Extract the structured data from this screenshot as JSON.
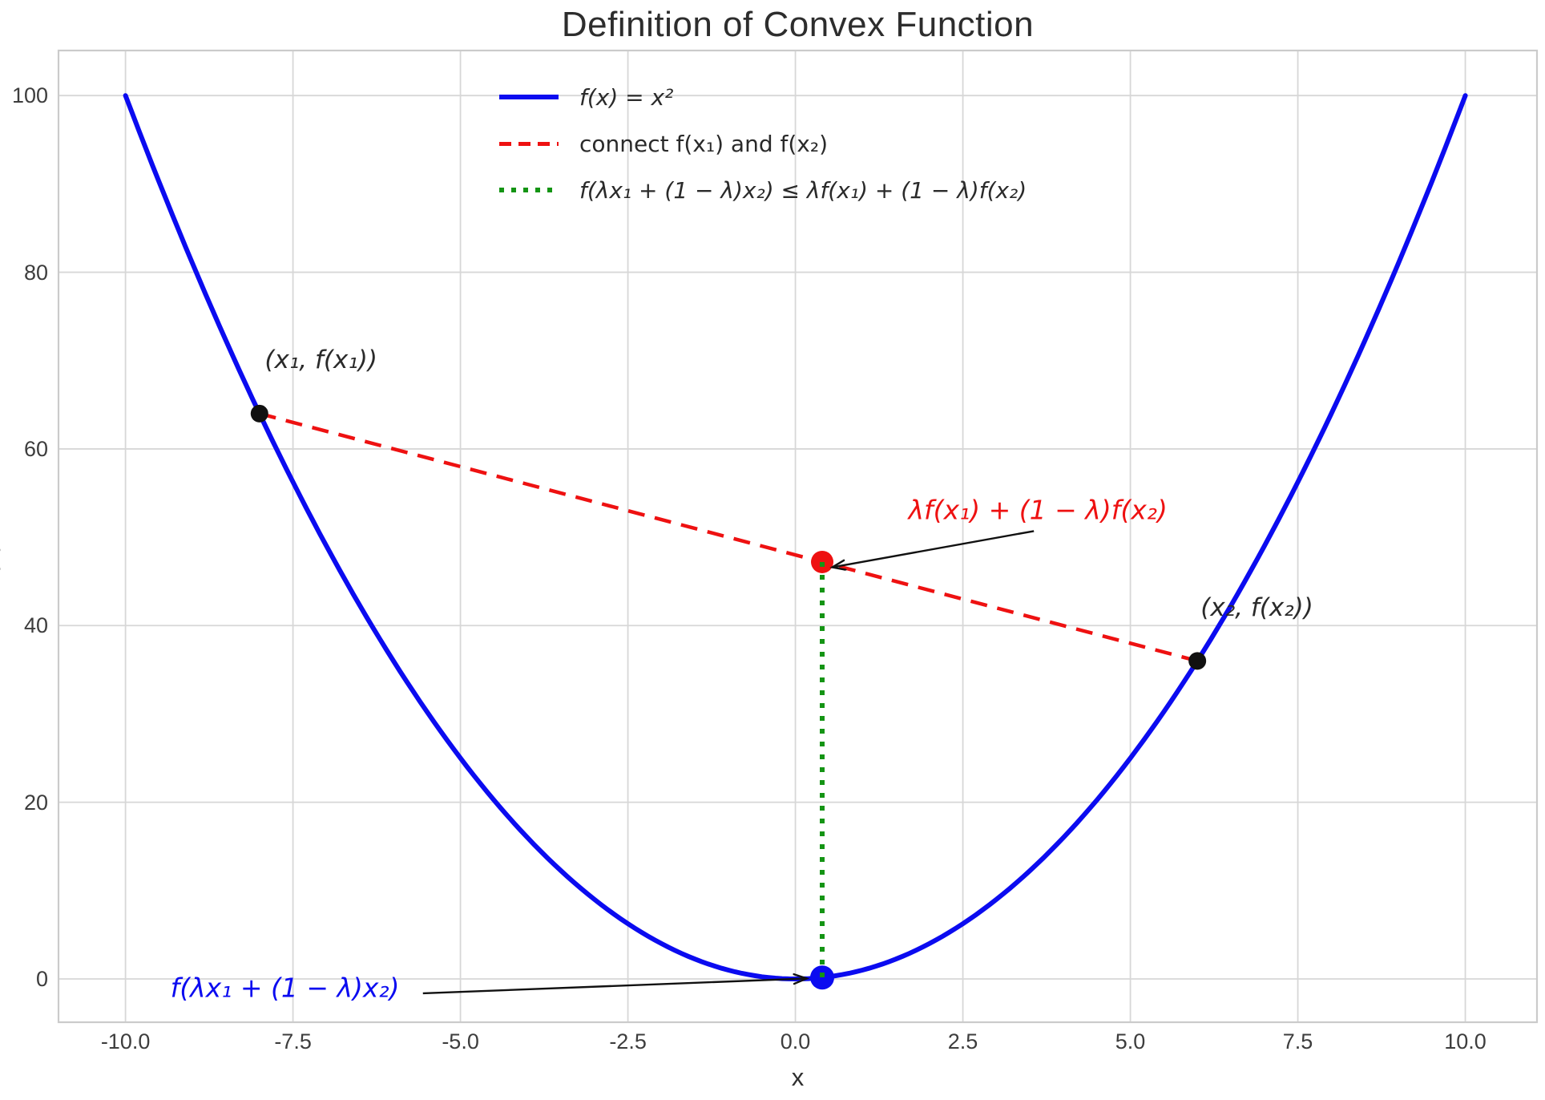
{
  "chart_data": {
    "type": "line",
    "title": "Definition of Convex Function",
    "xlabel": "x",
    "ylabel": "f(x)",
    "xlim": [
      -11.0,
      11.07
    ],
    "ylim": [
      -4.9,
      105.1
    ],
    "grid": true,
    "xticks": {
      "values": [
        -10,
        -7.5,
        -5,
        -2.5,
        0,
        2.5,
        5,
        7.5,
        10
      ],
      "labels": [
        "-10.0",
        "-7.5",
        "-5.0",
        "-2.5",
        "0.0",
        "2.5",
        "5.0",
        "7.5",
        "10.0"
      ]
    },
    "yticks": {
      "values": [
        0,
        20,
        40,
        60,
        80,
        100
      ],
      "labels": [
        "0",
        "20",
        "40",
        "60",
        "80",
        "100"
      ]
    },
    "curve": {
      "label": "f(x) = x²",
      "expr_power": 2,
      "x_min": -10,
      "x_max": 10,
      "color": "#0b0bf0",
      "width": 6
    },
    "points": {
      "x1": -8,
      "fx1": 64,
      "x2": 6,
      "fx2": 36,
      "lambda": 0.4,
      "x_combo": 0.4,
      "chord_value": 47.2,
      "curve_value": 0.16
    },
    "chord": {
      "from": [
        -8,
        64
      ],
      "to": [
        6,
        36
      ],
      "color": "#ee1111",
      "width": 4.5,
      "dash": "21 13"
    },
    "vline": {
      "x": 0.4,
      "y_from": 47.2,
      "y_to": 0.16,
      "color": "#149414",
      "width": 6,
      "dash": "6 10"
    },
    "scatter": [
      {
        "name": "point-x1",
        "x": -8,
        "y": 64,
        "r": 11,
        "color": "#111111"
      },
      {
        "name": "point-x2",
        "x": 6,
        "y": 36,
        "r": 11,
        "color": "#111111"
      },
      {
        "name": "point-chord-combo",
        "x": 0.4,
        "y": 47.2,
        "r": 14,
        "color": "#ee1111"
      },
      {
        "name": "point-curve-combo",
        "x": 0.4,
        "y": 0.16,
        "r": 15,
        "color": "#0b0bf0"
      }
    ],
    "legend": [
      {
        "label": "f(x) = x²",
        "color": "#0b0bf0",
        "style": "solid"
      },
      {
        "label": "connect f(x₁) and f(x₂)",
        "color": "#ee1111",
        "style": "dashed"
      },
      {
        "label": "f(λx₁ + (1 − λ)x₂) ≤ λf(x₁) + (1 − λ)f(x₂)",
        "color": "#149414",
        "style": "dotted"
      }
    ],
    "annotations": [
      {
        "text": "(x₁, f(x₁))",
        "x": -7.08,
        "y": 70.1,
        "color": "#2a2a2a"
      },
      {
        "text": "(x₂, f(x₂))",
        "x": 6.89,
        "y": 42.0,
        "color": "#2a2a2a"
      },
      {
        "text": "λf(x₁) + (1 − λ)f(x₂)",
        "x": 3.62,
        "y": 53.1,
        "color": "#ee1111"
      },
      {
        "text": "f(λx₁ + (1 − λ)x₂)",
        "x": -7.62,
        "y": -1.0,
        "color": "#0b0bf0"
      }
    ],
    "arrows": [
      {
        "from": [
          3.56,
          50.7
        ],
        "to": [
          0.55,
          46.6
        ]
      },
      {
        "from": [
          -5.56,
          -1.63
        ],
        "to": [
          0.17,
          0.05
        ]
      }
    ],
    "style_colors": {
      "grid": "#d7d7d7",
      "frame": "#cbcbcb",
      "tick_label": "#3d3d3d",
      "title": "#2d2d2d",
      "arrow": "#111111"
    }
  }
}
